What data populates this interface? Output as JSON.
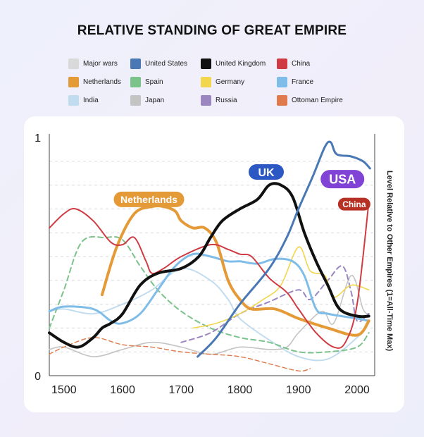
{
  "chart_data": {
    "type": "line",
    "title": "RELATIVE STANDING OF GREAT EMPIRE",
    "ylabel": "Level Relative to Other Empires (1=All-Time Max)",
    "xlim": [
      1475,
      2030
    ],
    "ylim": [
      0,
      1
    ],
    "x_ticks": [
      1500,
      1600,
      1700,
      1800,
      1900,
      2000
    ],
    "y_ticks": [
      0,
      1
    ],
    "grid": "horizontal dashed",
    "legend_position": "top",
    "legend": [
      {
        "name": "Major wars",
        "color": "#d9d9d9"
      },
      {
        "name": "United States",
        "color": "#4a78b5"
      },
      {
        "name": "United Kingdom",
        "color": "#111111"
      },
      {
        "name": "China",
        "color": "#cf3b42"
      },
      {
        "name": "Netherlands",
        "color": "#e59a38"
      },
      {
        "name": "Spain",
        "color": "#7cc28b"
      },
      {
        "name": "Germany",
        "color": "#f2d64e"
      },
      {
        "name": "France",
        "color": "#7fbde8"
      },
      {
        "name": "India",
        "color": "#c2dcef"
      },
      {
        "name": "Japan",
        "color": "#c4c4c4"
      },
      {
        "name": "Russia",
        "color": "#9b86c0"
      },
      {
        "name": "Ottoman Empire",
        "color": "#e0794b"
      }
    ],
    "series": [
      {
        "name": "India",
        "color": "#c2dcef",
        "width": 2,
        "dash": "",
        "points": [
          [
            1475,
            0.27
          ],
          [
            1500,
            0.28
          ],
          [
            1550,
            0.26
          ],
          [
            1600,
            0.3
          ],
          [
            1650,
            0.36
          ],
          [
            1700,
            0.45
          ],
          [
            1750,
            0.4
          ],
          [
            1780,
            0.32
          ],
          [
            1800,
            0.24
          ],
          [
            1850,
            0.15
          ],
          [
            1900,
            0.08
          ],
          [
            1950,
            0.07
          ],
          [
            2000,
            0.16
          ],
          [
            2020,
            0.22
          ]
        ]
      },
      {
        "name": "Japan",
        "color": "#c4c4c4",
        "width": 1.6,
        "dash": "",
        "points": [
          [
            1475,
            0.11
          ],
          [
            1500,
            0.12
          ],
          [
            1550,
            0.08
          ],
          [
            1600,
            0.11
          ],
          [
            1650,
            0.14
          ],
          [
            1700,
            0.12
          ],
          [
            1750,
            0.09
          ],
          [
            1800,
            0.12
          ],
          [
            1850,
            0.11
          ],
          [
            1880,
            0.12
          ],
          [
            1900,
            0.18
          ],
          [
            1940,
            0.27
          ],
          [
            1960,
            0.22
          ],
          [
            1990,
            0.42
          ],
          [
            2010,
            0.28
          ],
          [
            2020,
            0.26
          ]
        ]
      },
      {
        "name": "Ottoman Empire",
        "color": "#e0794b",
        "width": 1.4,
        "dash": "6 4",
        "points": [
          [
            1475,
            0.09
          ],
          [
            1500,
            0.12
          ],
          [
            1550,
            0.16
          ],
          [
            1600,
            0.13
          ],
          [
            1650,
            0.12
          ],
          [
            1700,
            0.1
          ],
          [
            1750,
            0.09
          ],
          [
            1800,
            0.08
          ],
          [
            1850,
            0.05
          ],
          [
            1900,
            0.02
          ],
          [
            1920,
            0.03
          ]
        ]
      },
      {
        "name": "Spain",
        "color": "#7cc28b",
        "width": 2,
        "dash": "7 5",
        "points": [
          [
            1475,
            0.2
          ],
          [
            1500,
            0.36
          ],
          [
            1530,
            0.56
          ],
          [
            1570,
            0.58
          ],
          [
            1600,
            0.57
          ],
          [
            1630,
            0.46
          ],
          [
            1660,
            0.36
          ],
          [
            1700,
            0.27
          ],
          [
            1750,
            0.2
          ],
          [
            1800,
            0.16
          ],
          [
            1850,
            0.14
          ],
          [
            1900,
            0.1
          ],
          [
            1950,
            0.1
          ],
          [
            2000,
            0.12
          ],
          [
            2020,
            0.18
          ]
        ]
      },
      {
        "name": "Russia",
        "color": "#9b86c0",
        "width": 2,
        "dash": "7 5",
        "points": [
          [
            1700,
            0.14
          ],
          [
            1750,
            0.18
          ],
          [
            1800,
            0.26
          ],
          [
            1850,
            0.31
          ],
          [
            1900,
            0.36
          ],
          [
            1920,
            0.32
          ],
          [
            1950,
            0.4
          ],
          [
            1975,
            0.46
          ],
          [
            1990,
            0.35
          ],
          [
            2000,
            0.23
          ],
          [
            2020,
            0.26
          ]
        ]
      },
      {
        "name": "Germany",
        "color": "#f2d64e",
        "width": 1.6,
        "dash": "",
        "points": [
          [
            1720,
            0.2
          ],
          [
            1760,
            0.22
          ],
          [
            1800,
            0.26
          ],
          [
            1840,
            0.32
          ],
          [
            1870,
            0.38
          ],
          [
            1900,
            0.54
          ],
          [
            1920,
            0.44
          ],
          [
            1945,
            0.42
          ],
          [
            1960,
            0.33
          ],
          [
            1990,
            0.38
          ],
          [
            2020,
            0.36
          ]
        ]
      },
      {
        "name": "France",
        "color": "#7fbde8",
        "width": 3,
        "dash": "",
        "points": [
          [
            1475,
            0.27
          ],
          [
            1500,
            0.29
          ],
          [
            1550,
            0.28
          ],
          [
            1580,
            0.23
          ],
          [
            1600,
            0.22
          ],
          [
            1630,
            0.26
          ],
          [
            1660,
            0.36
          ],
          [
            1690,
            0.46
          ],
          [
            1720,
            0.51
          ],
          [
            1750,
            0.5
          ],
          [
            1780,
            0.48
          ],
          [
            1800,
            0.48
          ],
          [
            1830,
            0.47
          ],
          [
            1860,
            0.49
          ],
          [
            1890,
            0.48
          ],
          [
            1910,
            0.42
          ],
          [
            1930,
            0.28
          ],
          [
            1950,
            0.26
          ],
          [
            2000,
            0.24
          ],
          [
            2020,
            0.23
          ]
        ]
      },
      {
        "name": "Netherlands",
        "color": "#e59a38",
        "width": 4,
        "dash": "",
        "points": [
          [
            1565,
            0.34
          ],
          [
            1590,
            0.54
          ],
          [
            1620,
            0.68
          ],
          [
            1650,
            0.71
          ],
          [
            1670,
            0.71
          ],
          [
            1690,
            0.69
          ],
          [
            1700,
            0.65
          ],
          [
            1720,
            0.62
          ],
          [
            1740,
            0.62
          ],
          [
            1760,
            0.56
          ],
          [
            1780,
            0.4
          ],
          [
            1800,
            0.32
          ],
          [
            1820,
            0.28
          ],
          [
            1860,
            0.28
          ],
          [
            1900,
            0.24
          ],
          [
            1950,
            0.2
          ],
          [
            2000,
            0.17
          ],
          [
            2020,
            0.23
          ]
        ]
      },
      {
        "name": "China",
        "color": "#cf3b42",
        "width": 2,
        "dash": "",
        "points": [
          [
            1475,
            0.62
          ],
          [
            1500,
            0.68
          ],
          [
            1520,
            0.7
          ],
          [
            1550,
            0.65
          ],
          [
            1580,
            0.56
          ],
          [
            1600,
            0.55
          ],
          [
            1620,
            0.58
          ],
          [
            1640,
            0.48
          ],
          [
            1650,
            0.43
          ],
          [
            1670,
            0.45
          ],
          [
            1700,
            0.5
          ],
          [
            1750,
            0.55
          ],
          [
            1780,
            0.53
          ],
          [
            1800,
            0.51
          ],
          [
            1820,
            0.5
          ],
          [
            1850,
            0.41
          ],
          [
            1880,
            0.35
          ],
          [
            1900,
            0.28
          ],
          [
            1930,
            0.18
          ],
          [
            1960,
            0.12
          ],
          [
            1980,
            0.14
          ],
          [
            2000,
            0.3
          ],
          [
            2020,
            0.73
          ]
        ]
      },
      {
        "name": "United Kingdom",
        "color": "#111111",
        "width": 4,
        "dash": "",
        "points": [
          [
            1475,
            0.18
          ],
          [
            1500,
            0.14
          ],
          [
            1525,
            0.12
          ],
          [
            1550,
            0.16
          ],
          [
            1565,
            0.2
          ],
          [
            1580,
            0.22
          ],
          [
            1600,
            0.26
          ],
          [
            1630,
            0.38
          ],
          [
            1660,
            0.43
          ],
          [
            1700,
            0.45
          ],
          [
            1730,
            0.5
          ],
          [
            1750,
            0.58
          ],
          [
            1770,
            0.65
          ],
          [
            1800,
            0.7
          ],
          [
            1830,
            0.74
          ],
          [
            1850,
            0.8
          ],
          [
            1870,
            0.8
          ],
          [
            1890,
            0.75
          ],
          [
            1910,
            0.6
          ],
          [
            1930,
            0.48
          ],
          [
            1950,
            0.38
          ],
          [
            1970,
            0.28
          ],
          [
            2000,
            0.25
          ],
          [
            2020,
            0.25
          ]
        ]
      },
      {
        "name": "United States",
        "color": "#4a78b5",
        "width": 3,
        "dash": "",
        "points": [
          [
            1728,
            0.08
          ],
          [
            1760,
            0.16
          ],
          [
            1800,
            0.3
          ],
          [
            1850,
            0.45
          ],
          [
            1880,
            0.58
          ],
          [
            1900,
            0.7
          ],
          [
            1925,
            0.84
          ],
          [
            1945,
            0.96
          ],
          [
            1955,
            0.98
          ],
          [
            1965,
            0.93
          ],
          [
            1990,
            0.92
          ],
          [
            2010,
            0.9
          ],
          [
            2022,
            0.87
          ]
        ]
      }
    ],
    "annotations": [
      {
        "text": "UK",
        "x": 1845,
        "y": 0.855,
        "color": "#2c58c4"
      },
      {
        "text": "USA",
        "x": 1975,
        "y": 0.825,
        "color": "#8142d6"
      },
      {
        "text": "Netherlands",
        "x": 1645,
        "y": 0.74,
        "color": "#e59a38"
      },
      {
        "text": "China",
        "x": 1995,
        "y": 0.72,
        "color": "#b73024"
      }
    ]
  }
}
